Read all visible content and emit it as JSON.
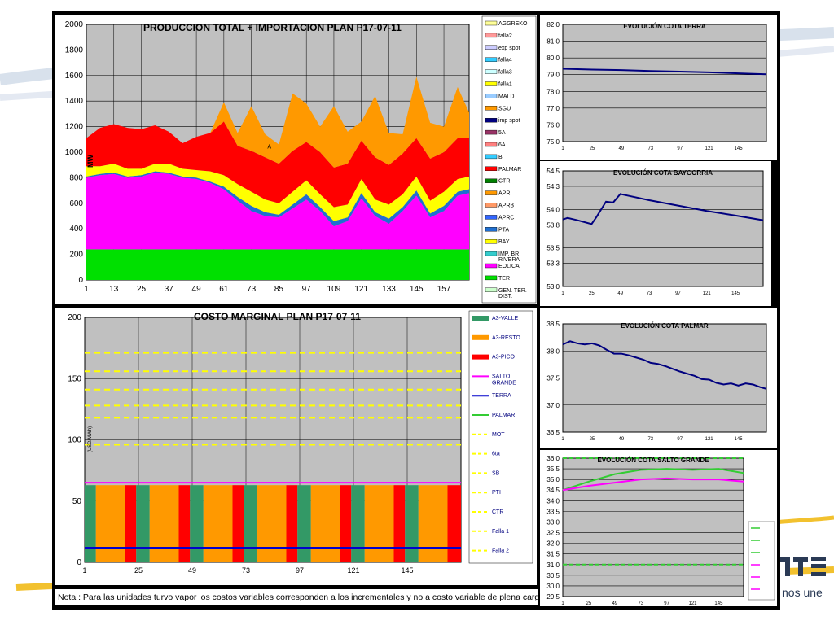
{
  "brand": {
    "text": "nos une"
  },
  "note": "Nota : Para las unidades turvo vapor los costos variables corresponden a los incrementales y no a costo variable de plena carga",
  "colors": {
    "plot_bg": "#c0c0c0",
    "ter": "#00e000",
    "eolica": "#ff00ff",
    "bay": "#ffff00",
    "palmar": "#ff0000",
    "sgu": "#ff9900",
    "pta": "#1f6fd0",
    "line": "#00007f",
    "valle": "#339966",
    "resto": "#ff9900",
    "pico": "#ff0000",
    "salto": "#ff00ff",
    "terra": "#0000cc",
    "ref": "#ffff00"
  },
  "chart_data": [
    {
      "id": "produccion",
      "type": "area",
      "title": "PRODUCCION TOTAL + IMPORTACION PLAN    P17-07-11",
      "ylabel": "MW",
      "ylim": [
        0,
        2000
      ],
      "yticks": [
        "0",
        "200",
        "400",
        "600",
        "800",
        "1000",
        "1200",
        "1400",
        "1600",
        "1800",
        "2000"
      ],
      "xticks": [
        "1",
        "13",
        "25",
        "37",
        "49",
        "61",
        "73",
        "85",
        "97",
        "109",
        "121",
        "133",
        "145",
        "157"
      ],
      "x": [
        1,
        7,
        13,
        19,
        25,
        31,
        37,
        43,
        49,
        55,
        61,
        67,
        73,
        79,
        85,
        91,
        97,
        103,
        109,
        115,
        121,
        127,
        133,
        139,
        145,
        151,
        157,
        163,
        168
      ],
      "annotation": "A",
      "series": [
        {
          "name": "TER",
          "color": "#00e000",
          "values": [
            240,
            240,
            240,
            240,
            240,
            240,
            240,
            240,
            240,
            240,
            240,
            240,
            240,
            240,
            240,
            240,
            240,
            240,
            240,
            240,
            240,
            240,
            240,
            240,
            240,
            240,
            240,
            240,
            240
          ]
        },
        {
          "name": "EOLICA",
          "color": "#ff00ff",
          "values": [
            560,
            580,
            590,
            560,
            570,
            600,
            590,
            560,
            550,
            520,
            470,
            380,
            300,
            260,
            250,
            320,
            390,
            300,
            180,
            220,
            400,
            260,
            200,
            300,
            420,
            250,
            300,
            420,
            440
          ]
        },
        {
          "name": "PTA",
          "color": "#1f6fd0",
          "values": [
            10,
            10,
            10,
            10,
            10,
            10,
            10,
            10,
            10,
            10,
            20,
            30,
            40,
            30,
            20,
            30,
            40,
            30,
            40,
            30,
            40,
            30,
            40,
            30,
            40,
            30,
            40,
            30,
            30
          ]
        },
        {
          "name": "BAY",
          "color": "#ffff00",
          "values": [
            80,
            60,
            70,
            60,
            50,
            60,
            70,
            60,
            60,
            80,
            90,
            100,
            110,
            100,
            90,
            100,
            110,
            100,
            110,
            100,
            110,
            100,
            110,
            100,
            110,
            100,
            110,
            100,
            100
          ]
        },
        {
          "name": "PALMAR",
          "color": "#ff0000",
          "values": [
            220,
            300,
            310,
            320,
            310,
            300,
            250,
            200,
            260,
            300,
            420,
            300,
            320,
            330,
            310,
            320,
            300,
            330,
            310,
            320,
            300,
            330,
            310,
            320,
            300,
            330,
            310,
            320,
            300
          ]
        },
        {
          "name": "SGU",
          "color": "#ff9900",
          "values": [
            0,
            0,
            0,
            0,
            0,
            0,
            0,
            0,
            0,
            0,
            150,
            100,
            350,
            180,
            150,
            450,
            300,
            200,
            480,
            250,
            150,
            480,
            250,
            150,
            480,
            280,
            200,
            400,
            200
          ]
        }
      ],
      "legend": [
        "AGGREKO",
        "falla2",
        "exp spot",
        "falla4",
        "falla3",
        "falla1",
        "MALD",
        "SGU",
        "imp spot",
        "5A",
        "6A",
        "B",
        "PALMAR",
        "CTR",
        "APR",
        "APRB",
        "APRC",
        "PTA",
        "BAY",
        "IMP. BR RIVERA",
        "EOLICA",
        "TER",
        "GEN. TER. DIST."
      ],
      "legend_colors": [
        "#ffff99",
        "#ff9999",
        "#ccccff",
        "#33ccff",
        "#ccffff",
        "#ffff00",
        "#99ccff",
        "#ff9900",
        "#000080",
        "#993366",
        "#ff8080",
        "#33ccff",
        "#ff0000",
        "#008000",
        "#ff9900",
        "#ff9966",
        "#3366ff",
        "#1f6fd0",
        "#ffff00",
        "#33cccc",
        "#ff00ff",
        "#00e000",
        "#ccffcc"
      ]
    },
    {
      "id": "costo",
      "type": "bar",
      "title": "COSTO MARGINAL PLAN    P17-07-11",
      "ylabel": "(USD/MWh)",
      "ylim": [
        0,
        200
      ],
      "yticks": [
        "0",
        "50",
        "100",
        "150",
        "200"
      ],
      "xticks": [
        "1",
        "25",
        "49",
        "73",
        "97",
        "121",
        "145"
      ],
      "bars": [
        {
          "cat": "A3-VALLE",
          "color": "#339966",
          "from": 0,
          "to": 5,
          "value": 63
        },
        {
          "cat": "A3-RESTO",
          "color": "#ff9900",
          "from": 5,
          "to": 18,
          "value": 63
        },
        {
          "cat": "A3-PICO",
          "color": "#ff0000",
          "from": 18,
          "to": 23,
          "value": 63
        },
        {
          "cat": "A3-VALLE",
          "color": "#339966",
          "from": 23,
          "to": 29,
          "value": 63
        },
        {
          "cat": "A3-RESTO",
          "color": "#ff9900",
          "from": 29,
          "to": 42,
          "value": 63
        },
        {
          "cat": "A3-PICO",
          "color": "#ff0000",
          "from": 42,
          "to": 47,
          "value": 63
        },
        {
          "cat": "A3-VALLE",
          "color": "#339966",
          "from": 47,
          "to": 53,
          "value": 63
        },
        {
          "cat": "A3-RESTO",
          "color": "#ff9900",
          "from": 53,
          "to": 66,
          "value": 63
        },
        {
          "cat": "A3-PICO",
          "color": "#ff0000",
          "from": 66,
          "to": 71,
          "value": 63
        },
        {
          "cat": "A3-VALLE",
          "color": "#339966",
          "from": 71,
          "to": 77,
          "value": 63
        },
        {
          "cat": "A3-RESTO",
          "color": "#ff9900",
          "from": 77,
          "to": 90,
          "value": 63
        },
        {
          "cat": "A3-PICO",
          "color": "#ff0000",
          "from": 90,
          "to": 95,
          "value": 63
        },
        {
          "cat": "A3-VALLE",
          "color": "#339966",
          "from": 95,
          "to": 101,
          "value": 63
        },
        {
          "cat": "A3-RESTO",
          "color": "#ff9900",
          "from": 101,
          "to": 114,
          "value": 63
        },
        {
          "cat": "A3-PICO",
          "color": "#ff0000",
          "from": 114,
          "to": 119,
          "value": 63
        },
        {
          "cat": "A3-VALLE",
          "color": "#339966",
          "from": 119,
          "to": 125,
          "value": 63
        },
        {
          "cat": "A3-RESTO",
          "color": "#ff9900",
          "from": 125,
          "to": 138,
          "value": 63
        },
        {
          "cat": "A3-PICO",
          "color": "#ff0000",
          "from": 138,
          "to": 143,
          "value": 63
        },
        {
          "cat": "A3-VALLE",
          "color": "#339966",
          "from": 143,
          "to": 149,
          "value": 63
        },
        {
          "cat": "A3-RESTO",
          "color": "#ff9900",
          "from": 149,
          "to": 162,
          "value": 63
        },
        {
          "cat": "A3-PICO",
          "color": "#ff0000",
          "from": 162,
          "to": 168,
          "value": 63
        }
      ],
      "lines": [
        {
          "name": "SALTO GRANDE",
          "color": "#ff00ff",
          "value": 65
        },
        {
          "name": "TERRA",
          "color": "#0000cc",
          "value": 12
        }
      ],
      "ref_lines": [
        {
          "name": "MOT",
          "value": 96
        },
        {
          "name": "6ta",
          "value": 118
        },
        {
          "name": "SB",
          "value": 128
        },
        {
          "name": "PTI",
          "value": 141
        },
        {
          "name": "CTR",
          "value": 156
        },
        {
          "name": "Falla 1",
          "value": 171
        }
      ],
      "legend": [
        "A3-VALLE",
        "A3-RESTO",
        "A3-PICO",
        "SALTO GRANDE",
        "TERRA",
        "PALMAR",
        "MOT",
        "6ta",
        "SB",
        "PTI",
        "CTR",
        "Falla 1",
        "Falla 2"
      ],
      "legend_colors": [
        "#339966",
        "#ff9900",
        "#ff0000",
        "#ff00ff",
        "#0000cc",
        "#33cc33",
        "#ffff00",
        "#ffff00",
        "#ffff00",
        "#ffff00",
        "#ffff00",
        "#ffff00",
        "#ffff00"
      ],
      "legend_styles": [
        "box",
        "box",
        "box",
        "line",
        "line",
        "line",
        "dash",
        "dash",
        "dash",
        "dash",
        "dash",
        "dash",
        "dash"
      ]
    },
    {
      "id": "terra",
      "type": "line",
      "title": "EVOLUCIÓN COTA TERRA",
      "ylim": [
        75,
        82
      ],
      "yticks": [
        "75,0",
        "76,0",
        "77,0",
        "78,0",
        "79,0",
        "80,0",
        "81,0",
        "82,0"
      ],
      "xticks": [
        "1",
        "25",
        "49",
        "73",
        "97",
        "121",
        "145"
      ],
      "x": [
        1,
        25,
        49,
        73,
        97,
        121,
        145,
        168
      ],
      "series": [
        {
          "color": "#00007f",
          "values": [
            79.35,
            79.3,
            79.27,
            79.22,
            79.18,
            79.14,
            79.08,
            79.02
          ]
        }
      ]
    },
    {
      "id": "baygorria",
      "type": "line",
      "title": "EVOLUCIÓN COTA BAYGORRIA",
      "ylim": [
        53.0,
        54.5
      ],
      "yticks": [
        "53,0",
        "53,3",
        "53,5",
        "53,8",
        "54,0",
        "54,3",
        "54,5"
      ],
      "xticks": [
        "1",
        "25",
        "49",
        "73",
        "97",
        "121",
        "145"
      ],
      "x": [
        1,
        5,
        13,
        25,
        29,
        37,
        43,
        49,
        55,
        73,
        97,
        121,
        145,
        168
      ],
      "series": [
        {
          "color": "#00007f",
          "values": [
            53.87,
            53.89,
            53.86,
            53.81,
            53.9,
            54.1,
            54.09,
            54.2,
            54.18,
            54.12,
            54.05,
            53.98,
            53.92,
            53.86
          ]
        }
      ]
    },
    {
      "id": "palmar",
      "type": "line",
      "title": "EVOLUCIÓN COTA PALMAR",
      "ylim": [
        36.5,
        38.5
      ],
      "yticks": [
        "36,5",
        "37,0",
        "37,5",
        "38,0",
        "38,5"
      ],
      "xticks": [
        "1",
        "25",
        "49",
        "73",
        "97",
        "121",
        "145"
      ],
      "x": [
        1,
        7,
        13,
        19,
        25,
        31,
        37,
        43,
        49,
        55,
        61,
        67,
        73,
        79,
        85,
        91,
        97,
        103,
        109,
        115,
        121,
        127,
        133,
        139,
        145,
        151,
        157,
        163,
        168
      ],
      "series": [
        {
          "color": "#00007f",
          "values": [
            38.12,
            38.18,
            38.14,
            38.12,
            38.14,
            38.1,
            38.02,
            37.95,
            37.95,
            37.92,
            37.88,
            37.84,
            37.78,
            37.76,
            37.72,
            37.67,
            37.62,
            37.58,
            37.54,
            37.48,
            37.47,
            37.41,
            37.38,
            37.4,
            37.36,
            37.4,
            37.38,
            37.33,
            37.3
          ]
        }
      ]
    },
    {
      "id": "salto",
      "type": "line",
      "title": "EVOLUCIÓN COTA SALTO GRANDE",
      "ylim": [
        29.5,
        36.0
      ],
      "yticks": [
        "29,5",
        "30,0",
        "30,5",
        "31,0",
        "31,5",
        "32,0",
        "32,5",
        "33,0",
        "33,5",
        "34,0",
        "34,5",
        "35,0",
        "35,5",
        "36,0"
      ],
      "xticks": [
        "1",
        "25",
        "49",
        "73",
        "97",
        "121",
        "145"
      ],
      "x": [
        1,
        25,
        49,
        73,
        97,
        121,
        145,
        168
      ],
      "series": [
        {
          "color": "#33cc33",
          "values": [
            34.5,
            34.9,
            35.25,
            35.45,
            35.5,
            35.45,
            35.5,
            35.3
          ]
        },
        {
          "color": "#ff00ff",
          "values": [
            34.5,
            34.7,
            34.85,
            35.0,
            35.05,
            35.0,
            35.0,
            34.9
          ]
        }
      ],
      "ref_lines": [
        {
          "color": "#33cc33",
          "value": 36.0
        },
        {
          "color": "#33cc33",
          "value": 31.0
        }
      ]
    }
  ]
}
